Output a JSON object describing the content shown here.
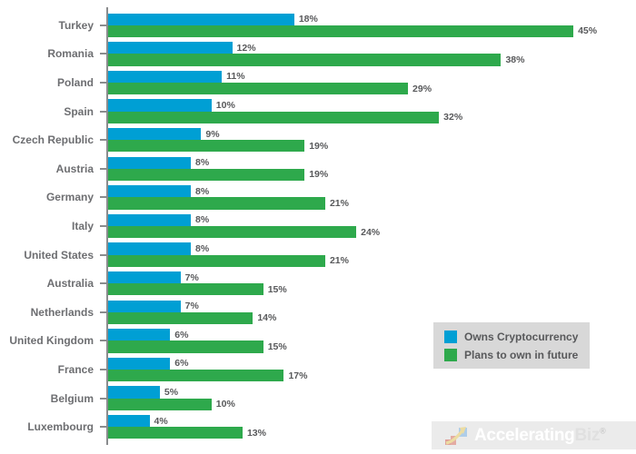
{
  "chart_data": {
    "type": "bar",
    "orientation": "horizontal",
    "title": "",
    "xlabel": "",
    "ylabel": "",
    "value_suffix": "%",
    "xlim": [
      0,
      51
    ],
    "grid": false,
    "legend_position": "bottom-right",
    "categories": [
      "Turkey",
      "Romania",
      "Poland",
      "Spain",
      "Czech Republic",
      "Austria",
      "Germany",
      "Italy",
      "United States",
      "Australia",
      "Netherlands",
      "United Kingdom",
      "France",
      "Belgium",
      "Luxembourg"
    ],
    "series": [
      {
        "name": "Owns Cryptocurrency",
        "color": "#009fd4",
        "values": [
          18,
          12,
          11,
          10,
          9,
          8,
          8,
          8,
          8,
          7,
          7,
          6,
          6,
          5,
          4
        ]
      },
      {
        "name": "Plans to own in future",
        "color": "#2ea94c",
        "values": [
          45,
          38,
          29,
          32,
          19,
          19,
          21,
          24,
          21,
          15,
          14,
          15,
          17,
          10,
          13
        ]
      }
    ]
  },
  "branding": {
    "logo_primary": "Accelerating",
    "logo_secondary": "Biz",
    "registered_mark": "®"
  },
  "colors": {
    "axis": "#8a8c8e",
    "category_label": "#6d6e71",
    "value_label": "#58595b",
    "legend_background": "#d8d8d8",
    "logo_background": "#ebebeb",
    "background": "#ffffff"
  }
}
